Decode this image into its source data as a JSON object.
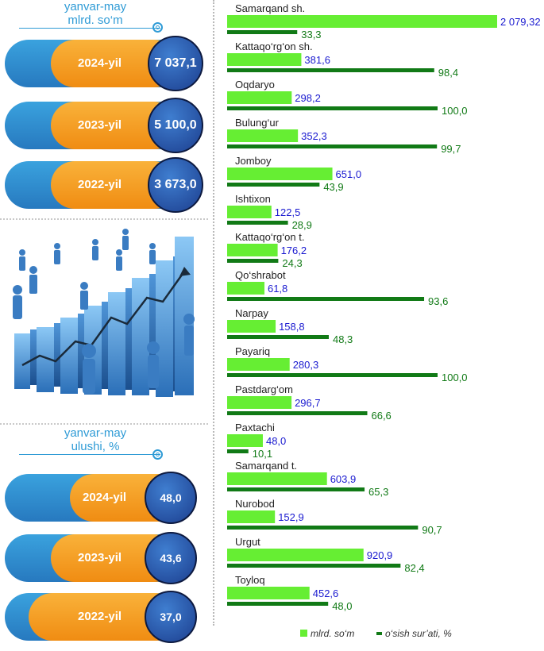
{
  "top_panel": {
    "header_line1": "yanvar-may",
    "header_line2": "mlrd. so‘m",
    "rows": [
      {
        "year": "2024-yil",
        "value": "7 037,1"
      },
      {
        "year": "2023-yil",
        "value": "5 100,0"
      },
      {
        "year": "2022-yil",
        "value": "3 673,0"
      }
    ]
  },
  "bottom_panel": {
    "header_line1": "yanvar-may",
    "header_line2": "ulushi, %",
    "rows": [
      {
        "year": "2024-yil",
        "value": "48,0"
      },
      {
        "year": "2023-yil",
        "value": "43,6"
      },
      {
        "year": "2022-yil",
        "value": "37,0"
      }
    ]
  },
  "illustration": "business-people-rising-bar-chart-image",
  "chart_data": {
    "type": "bar",
    "orientation": "horizontal",
    "categories": [
      "Samarqand sh.",
      "Kattaqo‘rg‘on sh.",
      "Oqdaryo",
      "Bulung‘ur",
      "Jomboy",
      "Ishtixon",
      "Kattaqo‘rg‘on t.",
      "Qo‘shrabot",
      "Narpay",
      "Payariq",
      "Pastdarg‘om",
      "Paxtachi",
      "Samarqand t.",
      "Nurobod",
      "Urgut",
      "Toyloq"
    ],
    "series": [
      {
        "name": "mlrd. so‘m",
        "color": "#66ee33",
        "values": [
          2079.32,
          381.6,
          298.2,
          352.3,
          651.0,
          122.5,
          176.2,
          61.8,
          158.8,
          280.3,
          296.7,
          48.0,
          603.9,
          152.9,
          920.9,
          452.6
        ],
        "labels": [
          "2 079,32",
          "381,6",
          "298,2",
          "352,3",
          "651,0",
          "122,5",
          "176,2",
          "61,8",
          "158,8",
          "280,3",
          "296,7",
          "48,0",
          "603,9",
          "152,9",
          "920,9",
          "452,6"
        ]
      },
      {
        "name": "o‘sish sur’ati, %",
        "color": "#117a16",
        "values": [
          33.3,
          98.4,
          100.0,
          99.7,
          43.9,
          28.9,
          24.3,
          93.6,
          48.3,
          100.0,
          66.6,
          10.1,
          65.3,
          90.7,
          82.4,
          48.0
        ],
        "labels": [
          "33,3",
          "98,4",
          "100,0",
          "99,7",
          "43,9",
          "28,9",
          "24,3",
          "93,6",
          "48,3",
          "100,0",
          "66,6",
          "10,1",
          "65,3",
          "90,7",
          "82,4",
          "48,0"
        ]
      }
    ],
    "legend_position": "bottom",
    "label_colors": {
      "mlrd. so‘m": "#1a1ad0",
      "o‘sish sur’ati, %": "#117a16"
    }
  }
}
